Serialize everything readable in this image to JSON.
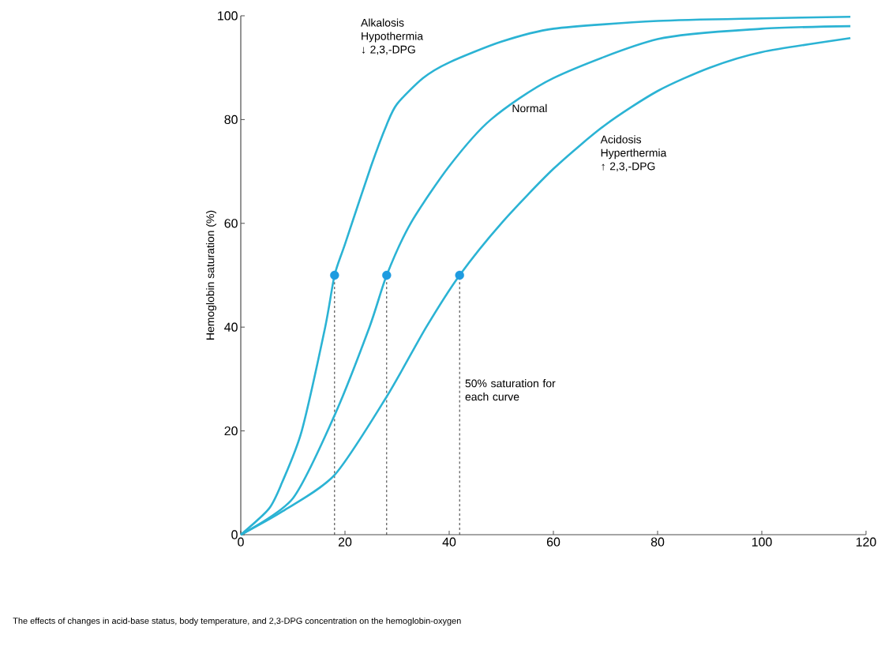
{
  "chart_data": {
    "type": "line",
    "ylabel": "Hemoglobin saturation (%)",
    "xlim": [
      0,
      120
    ],
    "xticks": [
      0,
      20,
      40,
      60,
      80,
      100,
      120
    ],
    "ylim": [
      0,
      100
    ],
    "yticks": [
      0,
      20,
      40,
      60,
      80,
      100
    ],
    "series": [
      {
        "name": "Alkalosis Hypothermia ↓ 2,3,-DPG",
        "color": "#2bb3d4",
        "x": [
          0,
          5.4,
          7.9,
          11.7,
          16.2,
          18,
          20,
          25,
          28,
          30,
          35,
          40,
          50,
          60,
          80,
          100,
          117
        ],
        "values": [
          0,
          5,
          10,
          20,
          40,
          50,
          56,
          71,
          79,
          83,
          88,
          91,
          95,
          97.5,
          99,
          99.5,
          99.8
        ]
      },
      {
        "name": "Normal",
        "color": "#2bb3d4",
        "x": [
          0,
          10,
          18,
          24.7,
          28,
          32.6,
          40,
          48,
          60,
          80,
          100,
          117
        ],
        "values": [
          0,
          7,
          23,
          40,
          50,
          60,
          71,
          80,
          88,
          95.5,
          97.5,
          98
        ]
      },
      {
        "name": "Acidosis Hyperthermia ↑ 2,3,-DPG",
        "color": "#2bb3d4",
        "x": [
          0,
          8,
          18,
          28,
          35.6,
          42,
          50,
          60,
          70,
          80,
          90,
          100,
          117
        ],
        "values": [
          0,
          4.5,
          11.5,
          26.6,
          40,
          50,
          60,
          70.5,
          79,
          85.5,
          90,
          93,
          95.7
        ]
      },
      {
        "type": "scatter",
        "marker": "circle",
        "color": "#1e9be0",
        "x": [
          18,
          28,
          42
        ],
        "values": [
          50,
          50,
          50
        ]
      }
    ],
    "ref_lines": [
      {
        "axis": "x",
        "value": 18,
        "line_style": "dashed",
        "color": "#333333"
      },
      {
        "axis": "x",
        "value": 28,
        "line_style": "dashed",
        "color": "#333333"
      },
      {
        "axis": "x",
        "value": 42,
        "line_style": "dashed",
        "color": "#333333"
      }
    ],
    "annotations": [
      "50% saturation for each curve",
      "The effects of changes in acid-base status, body temperature, and 2,3-DPG concentration on the hemoglobin-oxygen"
    ]
  }
}
